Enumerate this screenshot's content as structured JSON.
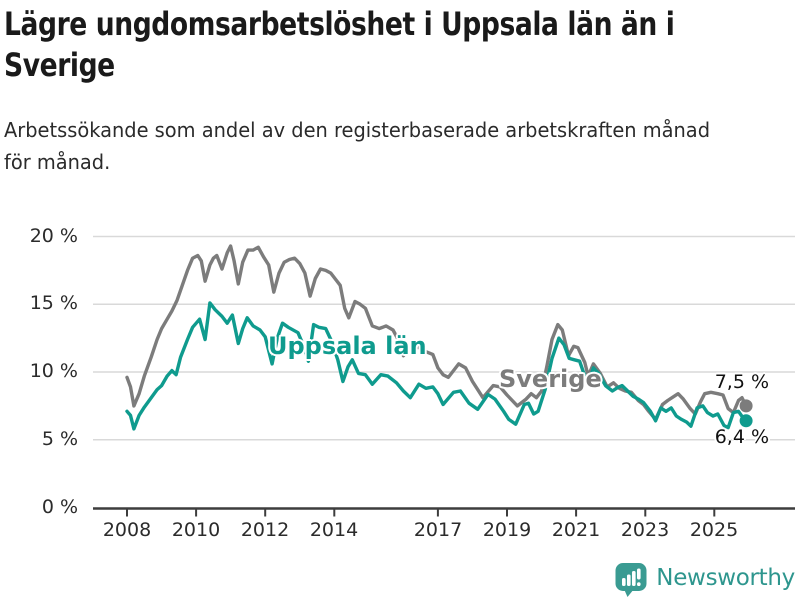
{
  "header": {
    "title_lines": [
      "Lägre ungdomsarbetslöshet i Uppsala län än i",
      "Sverige"
    ],
    "subtitle_lines": [
      "Arbetssökande som andel av den registerbaserade arbetskraften månad",
      "för månad."
    ]
  },
  "footer": {
    "brand": "Newsworthy",
    "logo_icon": "newsworthy-speech-bubble-bar-chart-icon"
  },
  "colors": {
    "uppsala_line": "#0f9b8e",
    "sverige_line": "#7c7c7c",
    "gridline": "#d9d9d9",
    "axis": "#3d3d3d",
    "title_text": "#1a1a1a",
    "body_text": "#2b2b2b",
    "end_label_text": "#111111",
    "brand_teal": "#2e968e"
  },
  "chart_data": {
    "type": "line",
    "title": "Lägre ungdomsarbetslöshet i Uppsala län än i Sverige",
    "subtitle": "Arbetssökande som andel av den registerbaserade arbetskraften månad för månad.",
    "unit": "%",
    "grid": "horizontal",
    "legend_position": "inline-labels",
    "xlim": [
      2008,
      2026.4
    ],
    "ylim": [
      0,
      20.5
    ],
    "x_ticks": [
      "2008",
      "2010",
      "2012",
      "2014",
      "2017",
      "2019",
      "2021",
      "2023",
      "2025"
    ],
    "x_tick_years": [
      2008,
      2010,
      2012,
      2014,
      2017,
      2019,
      2021,
      2023,
      2025
    ],
    "y_ticks": [
      0,
      5,
      10,
      15,
      20
    ],
    "y_tick_labels": [
      "0 %",
      "5 %",
      "10 %",
      "15 %",
      "20 %"
    ],
    "series": [
      {
        "name": "Sverige",
        "color": "#7c7c7c",
        "end_label": "7,5 %",
        "end_value": 7.5,
        "points": [
          [
            2008,
            9.6
          ],
          [
            2008.1,
            8.9
          ],
          [
            2008.2,
            7.5
          ],
          [
            2008.35,
            8.4
          ],
          [
            2008.5,
            9.7
          ],
          [
            2008.7,
            11.1
          ],
          [
            2008.87,
            12.4
          ],
          [
            2009,
            13.2
          ],
          [
            2009.16,
            13.9
          ],
          [
            2009.3,
            14.5
          ],
          [
            2009.45,
            15.3
          ],
          [
            2009.6,
            16.4
          ],
          [
            2009.75,
            17.5
          ],
          [
            2009.9,
            18.4
          ],
          [
            2010.05,
            18.6
          ],
          [
            2010.15,
            18.2
          ],
          [
            2010.26,
            16.7
          ],
          [
            2010.4,
            17.9
          ],
          [
            2010.5,
            18.4
          ],
          [
            2010.6,
            18.6
          ],
          [
            2010.75,
            17.6
          ],
          [
            2010.9,
            18.8
          ],
          [
            2011,
            19.3
          ],
          [
            2011.1,
            18.2
          ],
          [
            2011.22,
            16.5
          ],
          [
            2011.35,
            18.1
          ],
          [
            2011.5,
            19.0
          ],
          [
            2011.65,
            19.0
          ],
          [
            2011.8,
            19.2
          ],
          [
            2011.95,
            18.5
          ],
          [
            2012.1,
            17.9
          ],
          [
            2012.25,
            15.9
          ],
          [
            2012.4,
            17.3
          ],
          [
            2012.55,
            18.1
          ],
          [
            2012.7,
            18.3
          ],
          [
            2012.85,
            18.4
          ],
          [
            2013,
            18.0
          ],
          [
            2013.15,
            17.3
          ],
          [
            2013.3,
            15.6
          ],
          [
            2013.45,
            16.9
          ],
          [
            2013.6,
            17.6
          ],
          [
            2013.75,
            17.5
          ],
          [
            2013.9,
            17.3
          ],
          [
            2014.05,
            16.8
          ],
          [
            2014.17,
            16.4
          ],
          [
            2014.3,
            14.7
          ],
          [
            2014.42,
            14.0
          ],
          [
            2014.6,
            15.2
          ],
          [
            2014.75,
            15.0
          ],
          [
            2014.9,
            14.7
          ],
          [
            2015.1,
            13.4
          ],
          [
            2015.3,
            13.2
          ],
          [
            2015.5,
            13.4
          ],
          [
            2015.7,
            13.1
          ],
          [
            2015.85,
            12.4
          ],
          [
            2016,
            11.2
          ],
          [
            2016.2,
            11.8
          ],
          [
            2016.45,
            11.8
          ],
          [
            2016.65,
            11.5
          ],
          [
            2016.85,
            11.3
          ],
          [
            2017,
            10.3
          ],
          [
            2017.15,
            9.8
          ],
          [
            2017.3,
            9.6
          ],
          [
            2017.6,
            10.6
          ],
          [
            2017.8,
            10.3
          ],
          [
            2018,
            9.3
          ],
          [
            2018.15,
            8.7
          ],
          [
            2018.3,
            8.1
          ],
          [
            2018.6,
            9.0
          ],
          [
            2018.8,
            8.9
          ],
          [
            2019,
            8.3
          ],
          [
            2019.3,
            7.5
          ],
          [
            2019.55,
            8.0
          ],
          [
            2019.7,
            8.4
          ],
          [
            2019.85,
            8.1
          ],
          [
            2020,
            8.6
          ],
          [
            2020.15,
            10.4
          ],
          [
            2020.3,
            12.4
          ],
          [
            2020.47,
            13.5
          ],
          [
            2020.6,
            13.1
          ],
          [
            2020.78,
            11.2
          ],
          [
            2020.93,
            11.9
          ],
          [
            2021.05,
            11.8
          ],
          [
            2021.25,
            10.7
          ],
          [
            2021.35,
            9.7
          ],
          [
            2021.5,
            10.6
          ],
          [
            2021.7,
            9.9
          ],
          [
            2021.9,
            8.9
          ],
          [
            2022.08,
            9.2
          ],
          [
            2022.25,
            8.8
          ],
          [
            2022.42,
            8.6
          ],
          [
            2022.6,
            8.5
          ],
          [
            2022.8,
            7.9
          ],
          [
            2022.95,
            7.6
          ],
          [
            2023.1,
            7.1
          ],
          [
            2023.3,
            6.5
          ],
          [
            2023.5,
            7.6
          ],
          [
            2023.65,
            7.9
          ],
          [
            2023.83,
            8.2
          ],
          [
            2023.95,
            8.4
          ],
          [
            2024.1,
            8.0
          ],
          [
            2024.3,
            7.3
          ],
          [
            2024.45,
            6.9
          ],
          [
            2024.6,
            7.8
          ],
          [
            2024.72,
            8.4
          ],
          [
            2024.9,
            8.5
          ],
          [
            2025.1,
            8.4
          ],
          [
            2025.25,
            8.3
          ],
          [
            2025.4,
            7.3
          ],
          [
            2025.55,
            7.0
          ],
          [
            2025.7,
            7.9
          ],
          [
            2025.8,
            8.1
          ],
          [
            2025.92,
            7.5
          ]
        ]
      },
      {
        "name": "Uppsala län",
        "color": "#0f9b8e",
        "end_label": "6,4 %",
        "end_value": 6.4,
        "points": [
          [
            2008,
            7.1
          ],
          [
            2008.1,
            6.8
          ],
          [
            2008.2,
            5.8
          ],
          [
            2008.35,
            6.8
          ],
          [
            2008.5,
            7.4
          ],
          [
            2008.7,
            8.1
          ],
          [
            2008.87,
            8.7
          ],
          [
            2009,
            9.0
          ],
          [
            2009.16,
            9.7
          ],
          [
            2009.3,
            10.1
          ],
          [
            2009.42,
            9.8
          ],
          [
            2009.55,
            11.1
          ],
          [
            2009.75,
            12.4
          ],
          [
            2009.9,
            13.3
          ],
          [
            2010.1,
            13.9
          ],
          [
            2010.26,
            12.4
          ],
          [
            2010.4,
            15.1
          ],
          [
            2010.55,
            14.6
          ],
          [
            2010.75,
            14.1
          ],
          [
            2010.9,
            13.6
          ],
          [
            2011.05,
            14.2
          ],
          [
            2011.22,
            12.1
          ],
          [
            2011.35,
            13.2
          ],
          [
            2011.48,
            14.0
          ],
          [
            2011.65,
            13.4
          ],
          [
            2011.85,
            13.1
          ],
          [
            2012,
            12.6
          ],
          [
            2012.2,
            10.6
          ],
          [
            2012.35,
            12.5
          ],
          [
            2012.5,
            13.6
          ],
          [
            2012.67,
            13.3
          ],
          [
            2012.95,
            12.9
          ],
          [
            2013.1,
            12.0
          ],
          [
            2013.25,
            10.8
          ],
          [
            2013.4,
            13.5
          ],
          [
            2013.55,
            13.3
          ],
          [
            2013.75,
            13.2
          ],
          [
            2013.9,
            12.4
          ],
          [
            2014.1,
            10.9
          ],
          [
            2014.25,
            9.3
          ],
          [
            2014.4,
            10.4
          ],
          [
            2014.52,
            10.9
          ],
          [
            2014.7,
            9.9
          ],
          [
            2014.9,
            9.8
          ],
          [
            2015.1,
            9.1
          ],
          [
            2015.35,
            9.8
          ],
          [
            2015.55,
            9.7
          ],
          [
            2015.8,
            9.2
          ],
          [
            2016,
            8.6
          ],
          [
            2016.2,
            8.1
          ],
          [
            2016.45,
            9.1
          ],
          [
            2016.65,
            8.8
          ],
          [
            2016.85,
            8.9
          ],
          [
            2017,
            8.4
          ],
          [
            2017.15,
            7.6
          ],
          [
            2017.45,
            8.5
          ],
          [
            2017.65,
            8.6
          ],
          [
            2017.9,
            7.7
          ],
          [
            2018.15,
            7.25
          ],
          [
            2018.45,
            8.35
          ],
          [
            2018.65,
            8.0
          ],
          [
            2018.9,
            7.1
          ],
          [
            2019.05,
            6.5
          ],
          [
            2019.25,
            6.15
          ],
          [
            2019.5,
            7.6
          ],
          [
            2019.62,
            7.7
          ],
          [
            2019.77,
            6.9
          ],
          [
            2019.9,
            7.1
          ],
          [
            2020.1,
            8.7
          ],
          [
            2020.3,
            11.0
          ],
          [
            2020.5,
            12.5
          ],
          [
            2020.65,
            12.0
          ],
          [
            2020.8,
            11.0
          ],
          [
            2020.95,
            10.9
          ],
          [
            2021.1,
            10.8
          ],
          [
            2021.25,
            9.7
          ],
          [
            2021.37,
            9.3
          ],
          [
            2021.5,
            10.3
          ],
          [
            2021.65,
            9.9
          ],
          [
            2021.85,
            9.0
          ],
          [
            2022.05,
            8.6
          ],
          [
            2022.2,
            8.85
          ],
          [
            2022.33,
            9.0
          ],
          [
            2022.45,
            8.7
          ],
          [
            2022.65,
            8.2
          ],
          [
            2022.8,
            8.0
          ],
          [
            2022.95,
            7.75
          ],
          [
            2023.15,
            7.1
          ],
          [
            2023.3,
            6.4
          ],
          [
            2023.45,
            7.35
          ],
          [
            2023.6,
            7.1
          ],
          [
            2023.75,
            7.35
          ],
          [
            2023.9,
            6.75
          ],
          [
            2024.05,
            6.5
          ],
          [
            2024.2,
            6.3
          ],
          [
            2024.32,
            6.0
          ],
          [
            2024.5,
            7.35
          ],
          [
            2024.67,
            7.5
          ],
          [
            2024.8,
            7.0
          ],
          [
            2024.96,
            6.75
          ],
          [
            2025.1,
            6.9
          ],
          [
            2025.28,
            6.05
          ],
          [
            2025.4,
            5.9
          ],
          [
            2025.55,
            7.0
          ],
          [
            2025.7,
            7.1
          ],
          [
            2025.82,
            6.65
          ],
          [
            2025.92,
            6.4
          ]
        ]
      }
    ]
  }
}
